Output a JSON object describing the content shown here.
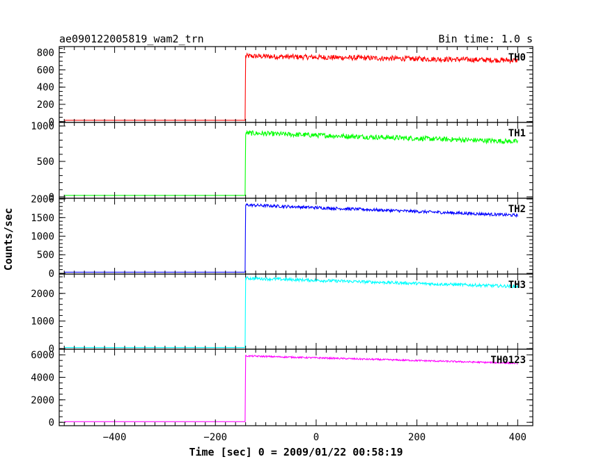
{
  "header": {
    "title": "ae090122005819_wam2_trn",
    "bin_time": "Bin time: 1.0 s"
  },
  "chart_data": {
    "type": "line",
    "title": "ae090122005819_wam2_trn",
    "annotation": "Bin time: 1.0 s",
    "xlabel": "Time [sec] 0 = 2009/01/22 00:58:19",
    "ylabel": "Counts/sec",
    "xlim": [
      -510,
      430
    ],
    "x_ticks": [
      -400,
      -200,
      0,
      200,
      400
    ],
    "x_tick_labels": [
      "−400",
      "−200",
      "0",
      "200",
      "400"
    ],
    "x_range": [
      -500,
      400
    ],
    "onset_time": -140,
    "grid": false,
    "panels": [
      {
        "name": "TH0",
        "color": "#ff0000",
        "ylim": [
          -10,
          870
        ],
        "yticks": [
          0,
          200,
          400,
          600,
          800
        ],
        "ytick_labels": [
          "0",
          "200",
          "400",
          "600",
          "800"
        ],
        "minor_step": 50,
        "pre_level": 15,
        "peak": 760,
        "end": 710,
        "noise": 30
      },
      {
        "name": "TH1",
        "color": "#00ff00",
        "ylim": [
          -20,
          1050
        ],
        "yticks": [
          0,
          500,
          1000
        ],
        "ytick_labels": [
          "0",
          "500",
          "1000"
        ],
        "minor_step": 100,
        "pre_level": 20,
        "peak": 900,
        "end": 780,
        "noise": 35
      },
      {
        "name": "TH2",
        "color": "#0000ff",
        "ylim": [
          -20,
          2020
        ],
        "yticks": [
          0,
          500,
          1000,
          1500,
          2000
        ],
        "ytick_labels": [
          "0",
          "500",
          "1000",
          "1500",
          "2000"
        ],
        "minor_step": 100,
        "pre_level": 30,
        "peak": 1840,
        "end": 1560,
        "noise": 40
      },
      {
        "name": "TH3",
        "color": "#00ffff",
        "ylim": [
          -20,
          2700
        ],
        "yticks": [
          0,
          1000,
          2000
        ],
        "ytick_labels": [
          "0",
          "1000",
          "2000"
        ],
        "minor_step": 200,
        "pre_level": 40,
        "peak": 2550,
        "end": 2250,
        "noise": 55
      },
      {
        "name": "TH0123",
        "color": "#ff00ff",
        "ylim": [
          -300,
          6500
        ],
        "yticks": [
          0,
          2000,
          4000,
          6000
        ],
        "ytick_labels": [
          "0",
          "2000",
          "4000",
          "6000"
        ],
        "minor_step": 500,
        "pre_level": 60,
        "peak": 5900,
        "end": 5250,
        "noise": 70
      }
    ]
  }
}
